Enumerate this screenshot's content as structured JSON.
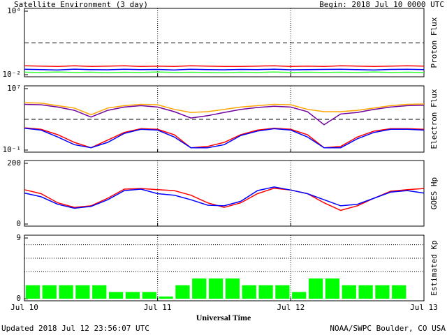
{
  "header": {
    "title": "Satellite Environment (3 day)",
    "begin": "Begin:  2018 Jul 10 0000 UTC"
  },
  "footer": {
    "updated": "Updated 2018 Jul 12 23:56:07 UTC",
    "credit": "NOAA/SWPC Boulder, CO USA"
  },
  "x_axis": {
    "label": "Universal Time",
    "xlim": [
      0,
      72
    ],
    "xticks": [
      {
        "value": 0,
        "label": "Jul 10"
      },
      {
        "value": 24,
        "label": "Jul 11"
      },
      {
        "value": 48,
        "label": "Jul 12"
      },
      {
        "value": 72,
        "label": "Jul 13"
      }
    ]
  },
  "chart_data": [
    {
      "type": "line",
      "ylabel": "Proton Flux",
      "log": true,
      "ylim": [
        0.01,
        10000
      ],
      "yticks": [
        {
          "value": 10000,
          "label": "10⁴"
        },
        {
          "value": 0.01,
          "label": "10⁻²"
        }
      ],
      "threshold": 10,
      "x": [
        0,
        3,
        6,
        9,
        12,
        15,
        18,
        21,
        24,
        27,
        30,
        33,
        36,
        39,
        42,
        45,
        48,
        51,
        54,
        57,
        60,
        63,
        66,
        69,
        72
      ],
      "series": [
        {
          "color": "#ff0000",
          "values": [
            0.07,
            0.065,
            0.06,
            0.07,
            0.06,
            0.065,
            0.07,
            0.06,
            0.065,
            0.06,
            0.07,
            0.065,
            0.06,
            0.06,
            0.065,
            0.07,
            0.06,
            0.065,
            0.06,
            0.07,
            0.065,
            0.06,
            0.065,
            0.07,
            0.065
          ]
        },
        {
          "color": "#0000ff",
          "values": [
            0.032,
            0.03,
            0.028,
            0.033,
            0.03,
            0.029,
            0.032,
            0.03,
            0.031,
            0.028,
            0.032,
            0.03,
            0.029,
            0.031,
            0.03,
            0.033,
            0.029,
            0.03,
            0.031,
            0.032,
            0.03,
            0.028,
            0.031,
            0.032,
            0.03
          ]
        },
        {
          "color": "#33ff33",
          "values": [
            0.017,
            0.016,
            0.018,
            0.016,
            0.017,
            0.015,
            0.017,
            0.016,
            0.018,
            0.016,
            0.017,
            0.016,
            0.015,
            0.017,
            0.016,
            0.018,
            0.016,
            0.017,
            0.016,
            0.017,
            0.016,
            0.018,
            0.016,
            0.017,
            0.016
          ]
        }
      ]
    },
    {
      "type": "line",
      "ylabel": "Electron Flux",
      "log": true,
      "ylim": [
        0.1,
        10000000
      ],
      "yticks": [
        {
          "value": 10000000,
          "label": "10⁷"
        },
        {
          "value": 0.1,
          "label": "10⁻¹"
        }
      ],
      "threshold": 1000,
      "x": [
        0,
        3,
        6,
        9,
        12,
        15,
        18,
        21,
        24,
        27,
        30,
        33,
        36,
        39,
        42,
        45,
        48,
        51,
        54,
        57,
        60,
        63,
        66,
        69,
        72
      ],
      "series": [
        {
          "color": "#ffa500",
          "values": [
            150000,
            130000,
            60000,
            30000,
            4000,
            30000,
            60000,
            90000,
            80000,
            20000,
            8000,
            10000,
            20000,
            40000,
            60000,
            90000,
            80000,
            20000,
            10000,
            10000,
            15000,
            30000,
            60000,
            90000,
            100000
          ]
        },
        {
          "color": "#7000a0",
          "values": [
            90000,
            80000,
            40000,
            15000,
            2000,
            15000,
            40000,
            60000,
            40000,
            10000,
            1500,
            3000,
            8000,
            20000,
            35000,
            50000,
            40000,
            10000,
            200,
            5000,
            8000,
            20000,
            40000,
            60000,
            70000
          ]
        },
        {
          "color": "#ff0000",
          "values": [
            80,
            50,
            10,
            1,
            0.2,
            2,
            20,
            60,
            50,
            10,
            0.2,
            0.3,
            1,
            10,
            40,
            70,
            50,
            10,
            0.2,
            0.3,
            5,
            30,
            60,
            60,
            50
          ]
        },
        {
          "color": "#0000ff",
          "values": [
            70,
            40,
            5,
            0.5,
            0.2,
            1,
            15,
            50,
            40,
            5,
            0.2,
            0.2,
            0.5,
            8,
            30,
            60,
            40,
            5,
            0.2,
            0.2,
            3,
            20,
            50,
            50,
            40
          ]
        }
      ]
    },
    {
      "type": "line",
      "ylabel": "GOES Hp",
      "log": false,
      "ylim": [
        0,
        200
      ],
      "yticks": [
        200,
        0
      ],
      "x": [
        0,
        3,
        6,
        9,
        12,
        15,
        18,
        21,
        24,
        27,
        30,
        33,
        36,
        39,
        42,
        45,
        48,
        51,
        54,
        57,
        60,
        63,
        66,
        69,
        72
      ],
      "series": [
        {
          "color": "#ff0000",
          "values": [
            113,
            100,
            70,
            55,
            60,
            85,
            115,
            117,
            113,
            110,
            95,
            70,
            55,
            70,
            100,
            118,
            112,
            100,
            70,
            45,
            60,
            85,
            108,
            113,
            117
          ]
        },
        {
          "color": "#0000ff",
          "values": [
            102,
            90,
            65,
            52,
            58,
            80,
            110,
            115,
            100,
            95,
            80,
            62,
            60,
            75,
            110,
            122,
            112,
            100,
            80,
            60,
            65,
            85,
            105,
            110,
            102
          ]
        }
      ]
    },
    {
      "type": "bar",
      "ylabel": "Estimated Kp",
      "log": false,
      "ylim": [
        0,
        9
      ],
      "yticks": [
        9,
        0
      ],
      "hgrid": [
        4,
        6,
        8
      ],
      "color": "#00ff00",
      "x": [
        1.5,
        4.5,
        7.5,
        10.5,
        13.5,
        16.5,
        19.5,
        22.5,
        25.5,
        28.5,
        31.5,
        34.5,
        37.5,
        40.5,
        43.5,
        46.5,
        49.5,
        52.5,
        55.5,
        58.5,
        61.5,
        64.5,
        67.5,
        70.5
      ],
      "values": [
        2,
        2,
        2,
        2,
        2,
        1,
        1,
        1,
        0.33,
        2,
        3,
        3,
        3,
        2,
        2,
        2,
        1,
        3,
        3,
        2,
        2,
        2,
        2,
        null
      ]
    }
  ]
}
